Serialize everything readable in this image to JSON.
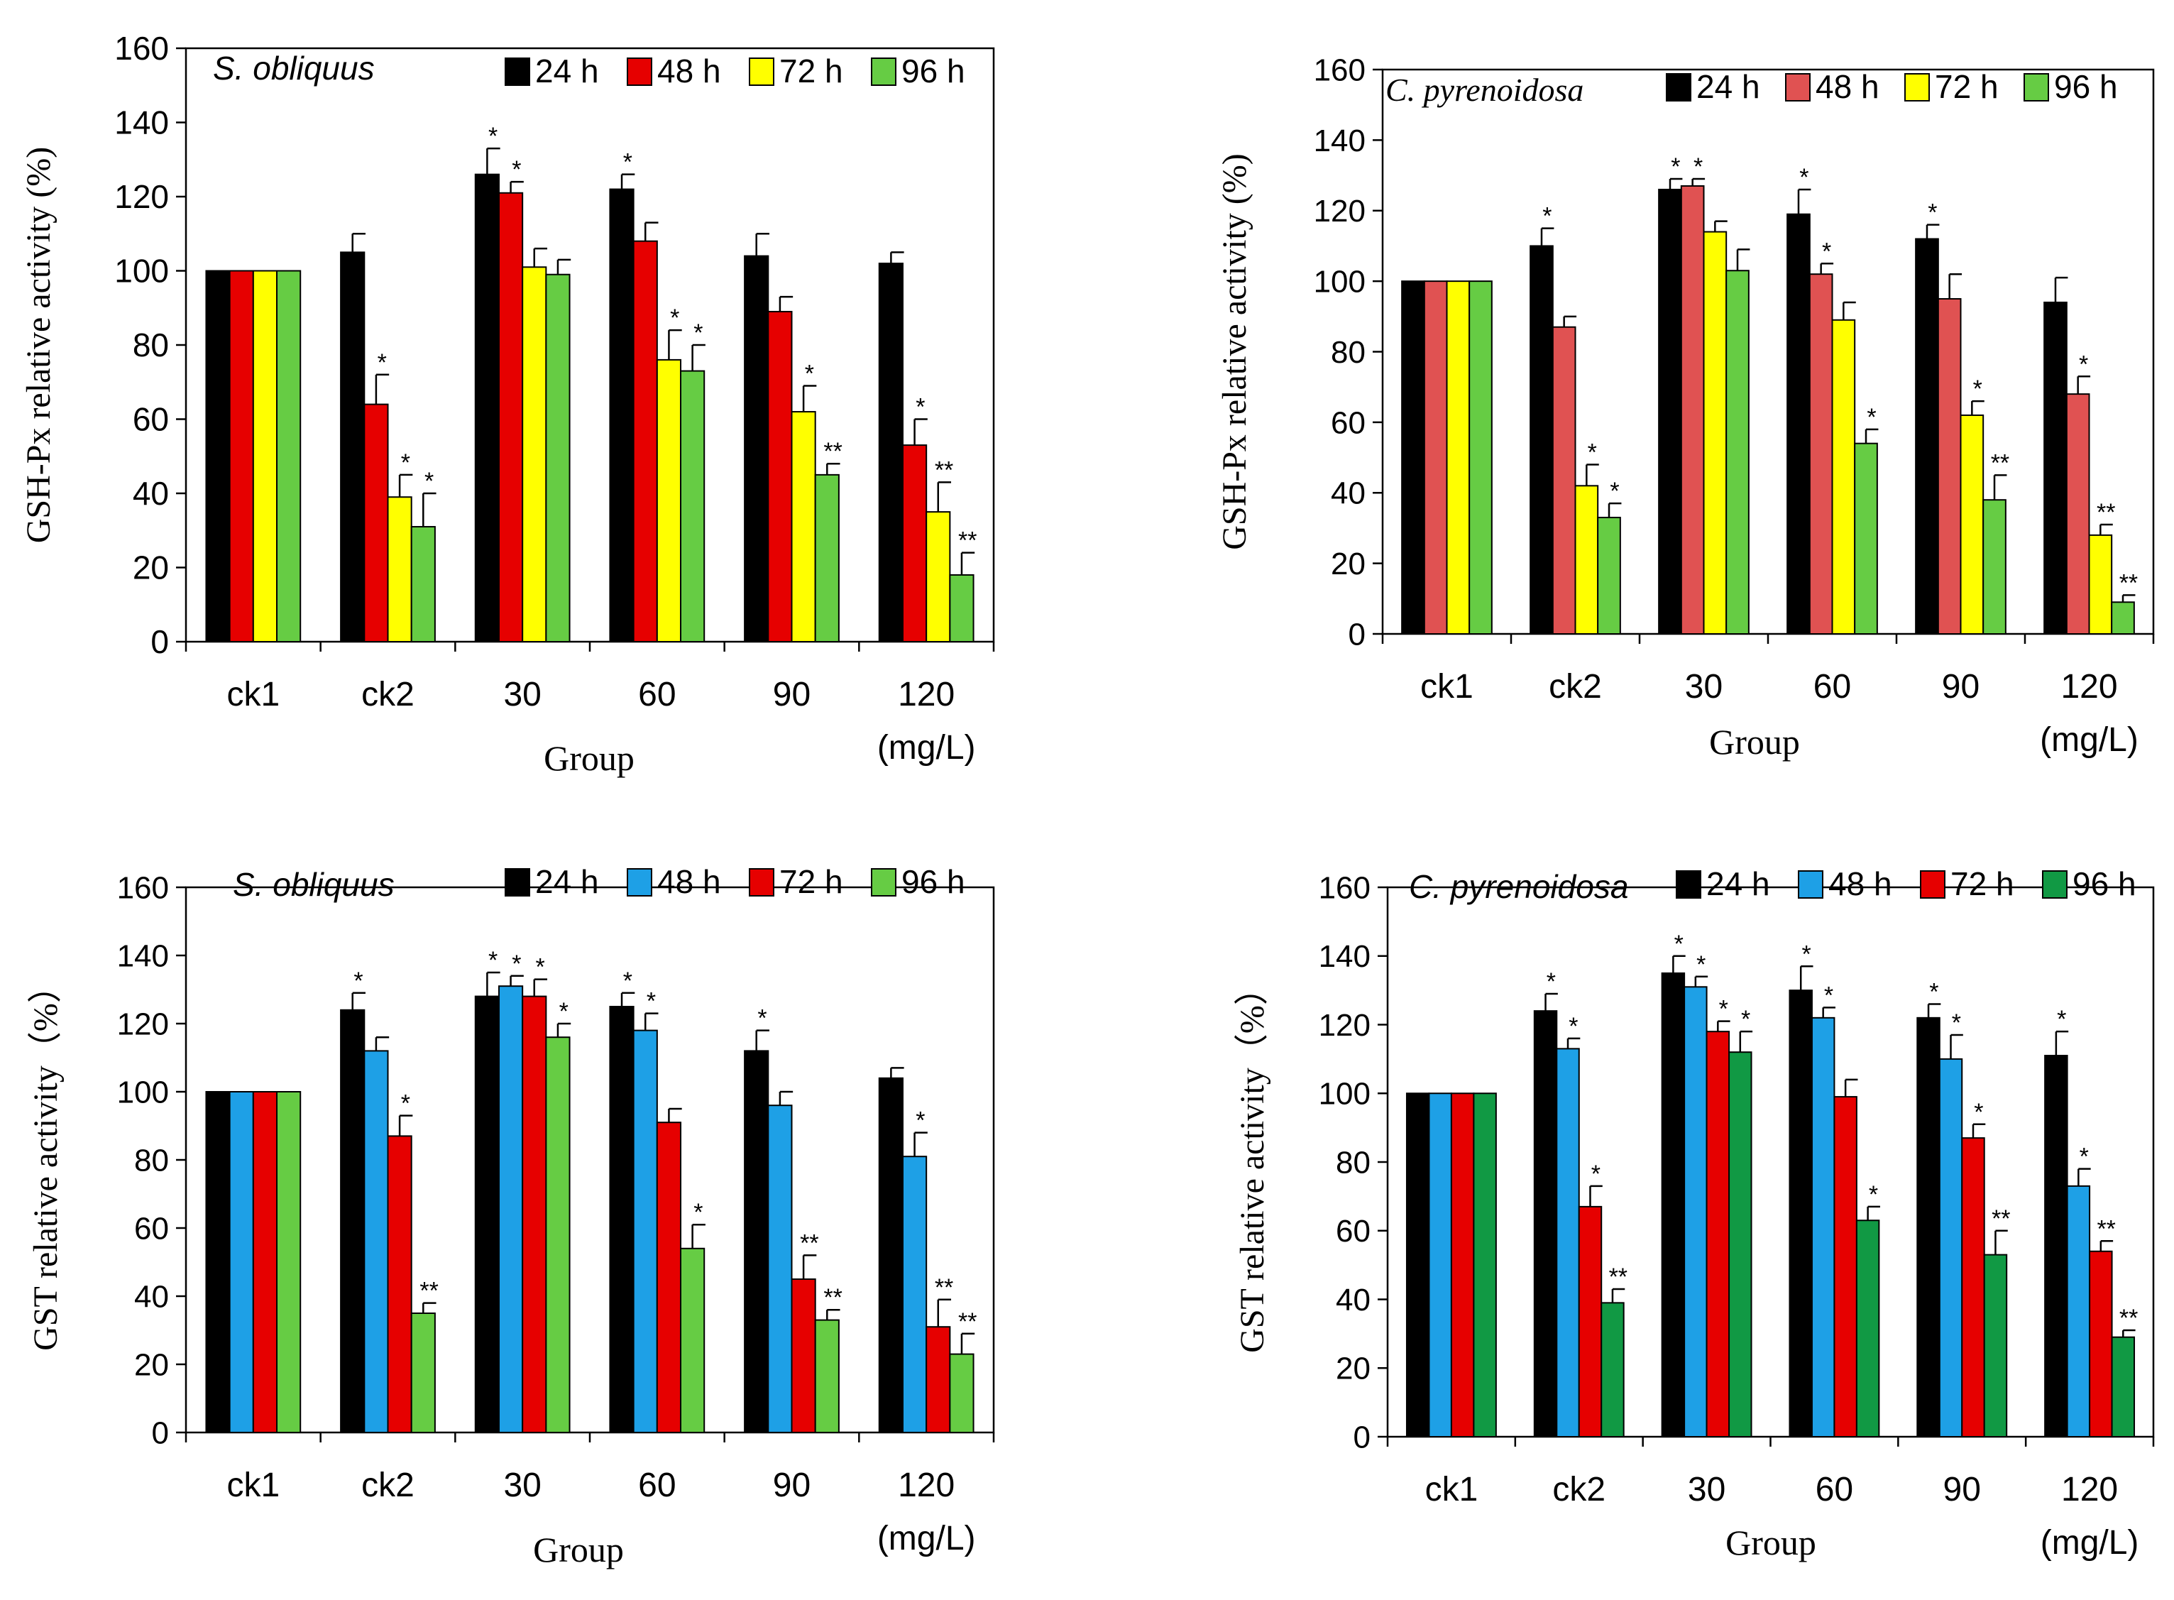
{
  "chart_data": [
    {
      "type": "bar",
      "species": "S. obliquus",
      "ylabel": "GSH-Px relative activity (%)",
      "xlabel": "Group",
      "unit_label": "(mg/L)",
      "categories": [
        "ck1",
        "ck2",
        "30",
        "60",
        "90",
        "120"
      ],
      "ylim": [
        0,
        160
      ],
      "yticks": [
        "0",
        "20",
        "40",
        "60",
        "80",
        "100",
        "120",
        "140",
        "160"
      ],
      "legend_position": "top-right",
      "series": [
        {
          "name": "24 h",
          "color": "#000000",
          "values": [
            100,
            105,
            126,
            122,
            104,
            102
          ],
          "errors": [
            0,
            5,
            7,
            4,
            6,
            3
          ],
          "sig": [
            "",
            "",
            "*",
            "*",
            "",
            ""
          ]
        },
        {
          "name": "48 h",
          "color": "#e60000",
          "values": [
            100,
            64,
            121,
            108,
            89,
            53
          ],
          "errors": [
            0,
            8,
            3,
            5,
            4,
            7
          ],
          "sig": [
            "",
            "*",
            "*",
            "",
            "",
            "*"
          ]
        },
        {
          "name": "72 h",
          "color": "#ffff00",
          "values": [
            100,
            39,
            101,
            76,
            62,
            35
          ],
          "errors": [
            0,
            6,
            5,
            8,
            7,
            8
          ],
          "sig": [
            "",
            "*",
            "",
            "*",
            "*",
            "**"
          ]
        },
        {
          "name": "96 h",
          "color": "#66cc44",
          "values": [
            100,
            31,
            99,
            73,
            45,
            18
          ],
          "errors": [
            0,
            9,
            4,
            7,
            3,
            6
          ],
          "sig": [
            "",
            "*",
            "",
            "*",
            "**",
            "**"
          ]
        }
      ]
    },
    {
      "type": "bar",
      "species": "C. pyrenoidosa",
      "ylabel": "GSH-Px relative activity (%)",
      "xlabel": "Group",
      "unit_label": "(mg/L)",
      "categories": [
        "ck1",
        "ck2",
        "30",
        "60",
        "90",
        "120"
      ],
      "ylim": [
        0,
        160
      ],
      "yticks": [
        "0",
        "20",
        "40",
        "60",
        "80",
        "100",
        "120",
        "140",
        "160"
      ],
      "legend_position": "top-right",
      "series": [
        {
          "name": "24 h",
          "color": "#000000",
          "values": [
            100,
            110,
            126,
            119,
            112,
            94
          ],
          "errors": [
            0,
            5,
            3,
            7,
            4,
            7
          ],
          "sig": [
            "",
            "*",
            "*",
            "*",
            "*",
            ""
          ]
        },
        {
          "name": "48 h",
          "color": "#e05252",
          "values": [
            100,
            87,
            127,
            102,
            95,
            68
          ],
          "errors": [
            0,
            3,
            2,
            3,
            7,
            5
          ],
          "sig": [
            "",
            "",
            "*",
            "*",
            "",
            "*"
          ]
        },
        {
          "name": "72 h",
          "color": "#ffff00",
          "values": [
            100,
            42,
            114,
            89,
            62,
            28
          ],
          "errors": [
            0,
            6,
            3,
            5,
            4,
            3
          ],
          "sig": [
            "",
            "*",
            "",
            "",
            "*",
            "**"
          ]
        },
        {
          "name": "96 h",
          "color": "#66cc44",
          "values": [
            100,
            33,
            103,
            54,
            38,
            9
          ],
          "errors": [
            0,
            4,
            6,
            4,
            7,
            2
          ],
          "sig": [
            "",
            "*",
            "",
            "*",
            "**",
            "**"
          ]
        }
      ]
    },
    {
      "type": "bar",
      "species": "S. obliquus",
      "ylabel": "GST relative activity（%）",
      "xlabel": "Group",
      "unit_label": "(mg/L)",
      "categories": [
        "ck1",
        "ck2",
        "30",
        "60",
        "90",
        "120"
      ],
      "ylim": [
        0,
        160
      ],
      "yticks": [
        "0",
        "20",
        "40",
        "60",
        "80",
        "100",
        "120",
        "140",
        "160"
      ],
      "legend_position": "top-right",
      "series": [
        {
          "name": "24 h",
          "color": "#000000",
          "values": [
            100,
            124,
            128,
            125,
            112,
            104
          ],
          "errors": [
            0,
            5,
            7,
            4,
            6,
            3
          ],
          "sig": [
            "",
            "*",
            "*",
            "*",
            "*",
            ""
          ]
        },
        {
          "name": "48 h",
          "color": "#1ea0e6",
          "values": [
            100,
            112,
            131,
            118,
            96,
            81
          ],
          "errors": [
            0,
            4,
            3,
            5,
            4,
            7
          ],
          "sig": [
            "",
            "",
            "*",
            "*",
            "",
            "*"
          ]
        },
        {
          "name": "72 h",
          "color": "#e60000",
          "values": [
            100,
            87,
            128,
            91,
            45,
            31
          ],
          "errors": [
            0,
            6,
            5,
            4,
            7,
            8
          ],
          "sig": [
            "",
            "*",
            "*",
            "",
            "**",
            "**"
          ]
        },
        {
          "name": "96 h",
          "color": "#66cc44",
          "values": [
            100,
            35,
            116,
            54,
            33,
            23
          ],
          "errors": [
            0,
            3,
            4,
            7,
            3,
            6
          ],
          "sig": [
            "",
            "**",
            "*",
            "*",
            "**",
            "**"
          ]
        }
      ]
    },
    {
      "type": "bar",
      "species": "C. pyrenoidosa",
      "ylabel": "GST relative activity（%）",
      "xlabel": "Group",
      "unit_label": "(mg/L)",
      "categories": [
        "ck1",
        "ck2",
        "30",
        "60",
        "90",
        "120"
      ],
      "ylim": [
        0,
        160
      ],
      "yticks": [
        "0",
        "20",
        "40",
        "60",
        "80",
        "100",
        "120",
        "140",
        "160"
      ],
      "legend_position": "top-right",
      "series": [
        {
          "name": "24 h",
          "color": "#000000",
          "values": [
            100,
            124,
            135,
            130,
            122,
            111
          ],
          "errors": [
            0,
            5,
            5,
            7,
            4,
            7
          ],
          "sig": [
            "",
            "*",
            "*",
            "*",
            "*",
            "*"
          ]
        },
        {
          "name": "48 h",
          "color": "#1ea0e6",
          "values": [
            100,
            113,
            131,
            122,
            110,
            73
          ],
          "errors": [
            0,
            3,
            3,
            3,
            7,
            5
          ],
          "sig": [
            "",
            "*",
            "*",
            "*",
            "*",
            "*"
          ]
        },
        {
          "name": "72 h",
          "color": "#e60000",
          "values": [
            100,
            67,
            118,
            99,
            87,
            54
          ],
          "errors": [
            0,
            6,
            3,
            5,
            4,
            3
          ],
          "sig": [
            "",
            "*",
            "*",
            "",
            "*",
            "**"
          ]
        },
        {
          "name": "96 h",
          "color": "#119944",
          "values": [
            100,
            39,
            112,
            63,
            53,
            29
          ],
          "errors": [
            0,
            4,
            6,
            4,
            7,
            2
          ],
          "sig": [
            "",
            "**",
            "*",
            "*",
            "**",
            "**"
          ]
        }
      ]
    }
  ]
}
